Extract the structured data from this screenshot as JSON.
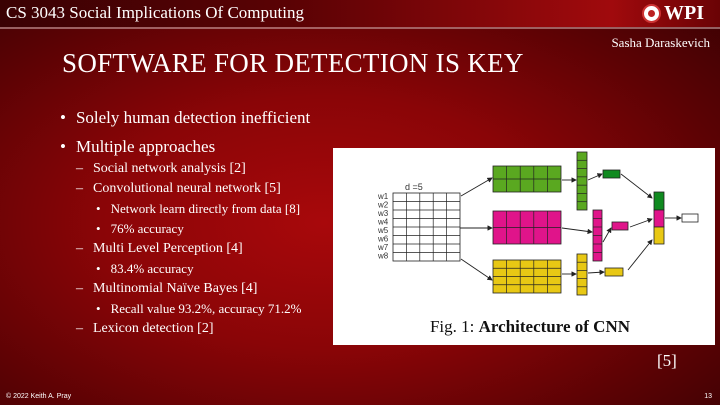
{
  "header": {
    "course": "CS 3043 Social Implications Of Computing",
    "logo_text": "WPI",
    "author": "Sasha Daraskevich"
  },
  "title": "SOFTWARE FOR DETECTION IS KEY",
  "bullets": [
    {
      "level": 1,
      "text": "Solely human detection inefficient"
    },
    {
      "level": 1,
      "text": "Multiple approaches"
    },
    {
      "level": 2,
      "text": "Social network analysis [2]"
    },
    {
      "level": 2,
      "text": "Convolutional neural network [5]"
    },
    {
      "level": 3,
      "text": "Network learn directly from data [8]"
    },
    {
      "level": 3,
      "text": "76% accuracy"
    },
    {
      "level": 2,
      "text": "Multi Level Perception [4]"
    },
    {
      "level": 3,
      "text": "83.4% accuracy"
    },
    {
      "level": 2,
      "text": "Multinomial Naïve Bayes [4]"
    },
    {
      "level": 3,
      "text": "Recall value 93.2%, accuracy 71.2%"
    },
    {
      "level": 2,
      "text": "Lexicon detection [2]"
    }
  ],
  "figure": {
    "d_label": "d =5",
    "w_labels": [
      "w1",
      "w2",
      "w3",
      "w4",
      "w5",
      "w6",
      "w7",
      "w8"
    ],
    "caption_prefix": "Fig. 1: ",
    "caption_bold": "Architecture of CNN",
    "colors": {
      "green": "#5aa820",
      "magenta": "#e0148a",
      "yellow": "#e8c814",
      "dark_green": "#108a20"
    }
  },
  "citation": "[5]",
  "footer": {
    "copyright": "© 2022 Keith A. Pray",
    "page": "13"
  }
}
